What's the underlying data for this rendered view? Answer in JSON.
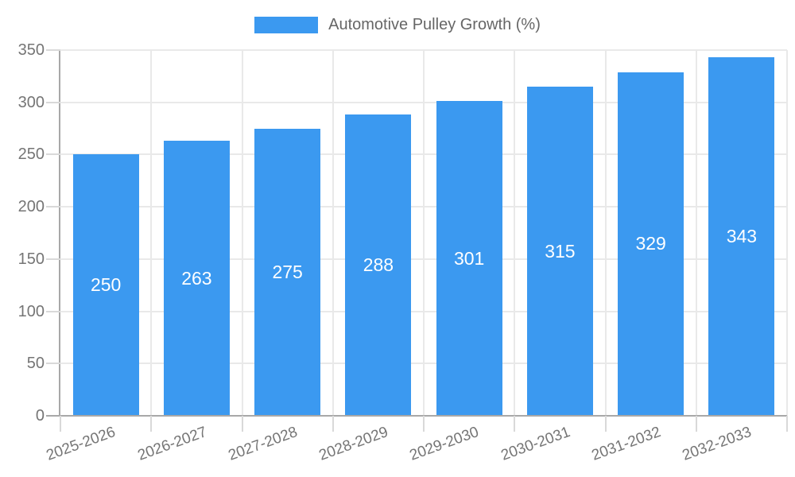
{
  "chart_data": {
    "type": "bar",
    "title": "",
    "legend": "Automotive Pulley Growth (%)",
    "legend_position": "top",
    "categories": [
      "2025-2026",
      "2026-2027",
      "2027-2028",
      "2028-2029",
      "2029-2030",
      "2030-2031",
      "2031-2032",
      "2032-2033"
    ],
    "series": [
      {
        "name": "Automotive Pulley Growth (%)",
        "values": [
          250,
          263,
          275,
          288,
          301,
          315,
          329,
          343
        ]
      }
    ],
    "value_labels": [
      "250",
      "263",
      "275",
      "288",
      "301",
      "315",
      "329",
      "343"
    ],
    "xlabel": "",
    "ylabel": "",
    "ylim": [
      0,
      350
    ],
    "ytick_step": 50,
    "grid": true,
    "colors": {
      "bar": "#3b99f0",
      "value_label": "#ffffff",
      "axis_line": "#a8a8a8",
      "gridline": "#e9e9e9",
      "tick": "#d9d9d9",
      "axis_label": "#757575",
      "legend_text": "#666666",
      "background": "#ffffff"
    }
  }
}
